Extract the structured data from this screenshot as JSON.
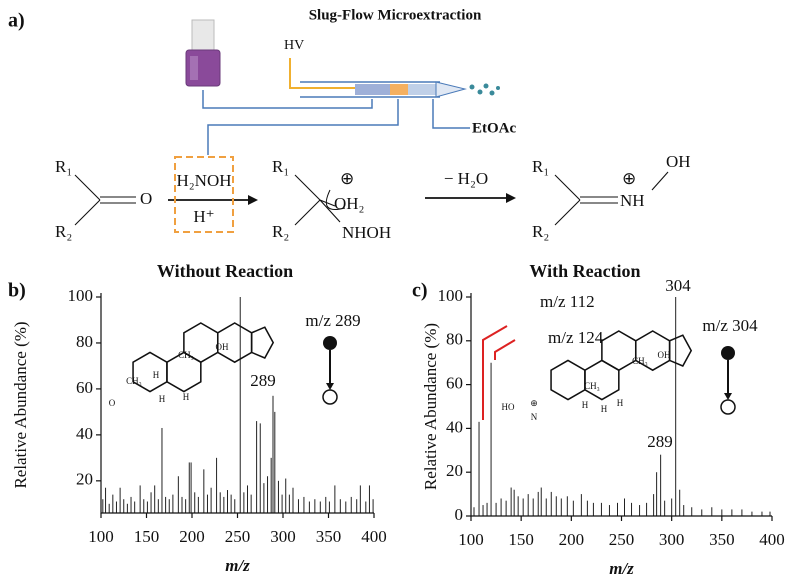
{
  "panel_a": {
    "label": "a)",
    "title": "Slug-Flow Microextraction",
    "hv": "HV",
    "solvent": "EtOAc",
    "reaction": {
      "r1": "R₁",
      "r2": "R₂",
      "ketone_o": "O",
      "reagent": "H₂NOH",
      "acid": "H⁺",
      "charge": "⊕",
      "oh2": "OH₂",
      "nhoh": "NHOH",
      "loss": "− H₂O",
      "nh": "NH",
      "oh": "OH"
    }
  },
  "chart_data": [
    {
      "type": "stem",
      "panel_label": "b)",
      "title": "Without Reaction",
      "xlabel": "m/z",
      "ylabel": "Relative Abundance (%)",
      "color": "#222222",
      "x": [
        102,
        105,
        109,
        113,
        117,
        121,
        125,
        129,
        133,
        137,
        143,
        147,
        151,
        155,
        159,
        163,
        167,
        171,
        175,
        179,
        185,
        189,
        193,
        197,
        199,
        203,
        207,
        213,
        217,
        221,
        227,
        231,
        235,
        239,
        243,
        247,
        253,
        257,
        261,
        265,
        271,
        275,
        279,
        283,
        287,
        289,
        291,
        295,
        299,
        303,
        307,
        311,
        317,
        323,
        329,
        335,
        341,
        347,
        351,
        357,
        363,
        369,
        375,
        381,
        385,
        391,
        395,
        399
      ],
      "values": [
        12,
        17,
        10,
        14,
        11,
        17,
        12,
        10,
        13,
        11,
        18,
        12,
        11,
        15,
        18,
        12,
        43,
        13,
        12,
        14,
        22,
        13,
        12,
        28,
        28,
        15,
        13,
        25,
        14,
        17,
        30,
        15,
        13,
        16,
        14,
        12,
        100,
        15,
        18,
        14,
        46,
        45,
        19,
        22,
        30,
        57,
        50,
        20,
        14,
        21,
        14,
        17,
        12,
        13,
        11,
        12,
        11,
        13,
        11,
        18,
        12,
        11,
        13,
        12,
        18,
        11,
        18,
        12
      ],
      "xlim": [
        100,
        400
      ],
      "ylim": [
        6,
        100
      ],
      "xticks": [
        100,
        150,
        200,
        250,
        300,
        350,
        400
      ],
      "yticks": [
        20,
        40,
        60,
        80,
        100
      ],
      "annotations": [
        "289",
        "m/z 289"
      ],
      "structure_labels": [
        "OH",
        "CH₃",
        "CH₃",
        "H",
        "H",
        "H",
        "O"
      ]
    },
    {
      "type": "stem",
      "panel_label": "c)",
      "title": "With Reaction",
      "xlabel": "m/z",
      "ylabel": "Relative Abundance (%)",
      "color": "#222222",
      "x": [
        103,
        108,
        112,
        116,
        120,
        125,
        130,
        135,
        140,
        143,
        147,
        152,
        157,
        162,
        167,
        170,
        175,
        180,
        185,
        190,
        196,
        202,
        210,
        216,
        222,
        230,
        238,
        246,
        253,
        260,
        268,
        275,
        282,
        285,
        289,
        293,
        300,
        304,
        308,
        312,
        320,
        330,
        340,
        350,
        360,
        370,
        380,
        390,
        398
      ],
      "values": [
        4,
        43,
        5,
        6,
        70,
        6,
        8,
        7,
        13,
        12,
        9,
        8,
        10,
        8,
        11,
        13,
        8,
        11,
        9,
        8,
        9,
        7,
        10,
        7,
        6,
        6,
        5,
        6,
        8,
        6,
        5,
        6,
        10,
        20,
        28,
        7,
        8,
        100,
        12,
        5,
        4,
        3,
        4,
        3,
        3,
        3,
        2,
        2,
        2
      ],
      "xlim": [
        100,
        400
      ],
      "ylim": [
        0,
        100
      ],
      "xticks": [
        100,
        150,
        200,
        250,
        300,
        350,
        400
      ],
      "yticks": [
        0,
        20,
        40,
        60,
        80,
        100
      ],
      "annotations": [
        "304",
        "289",
        "m/z 112",
        "m/z 124",
        "m/z 304"
      ],
      "structure_labels": [
        "OH",
        "CH₃",
        "CH₃",
        "H",
        "H",
        "H",
        "HO",
        "N",
        "⊕"
      ]
    }
  ]
}
